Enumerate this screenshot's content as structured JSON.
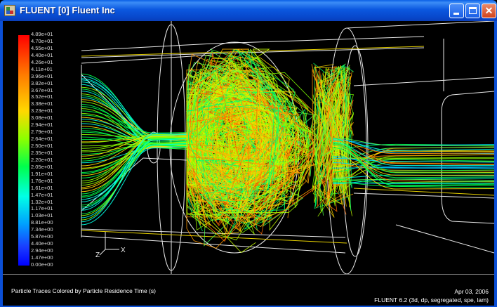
{
  "window": {
    "title": "FLUENT [0] Fluent Inc",
    "icon": "fluent-app-icon",
    "controls": {
      "minimize": "minimize-icon",
      "maximize": "maximize-icon",
      "close": "close-icon",
      "close_glyph": "✕"
    }
  },
  "colorbar": {
    "labels": [
      "4.89e+01",
      "4.70e+01",
      "4.55e+01",
      "4.40e+01",
      "4.26e+01",
      "4.11e+01",
      "3.96e+01",
      "3.82e+01",
      "3.67e+01",
      "3.52e+01",
      "3.38e+01",
      "3.23e+01",
      "3.08e+01",
      "2.94e+01",
      "2.79e+01",
      "2.64e+01",
      "2.50e+01",
      "2.35e+01",
      "2.20e+01",
      "2.05e+01",
      "1.91e+01",
      "1.76e+01",
      "1.61e+01",
      "1.47e+01",
      "1.32e+01",
      "1.17e+01",
      "1.03e+01",
      "8.81e+00",
      "7.34e+00",
      "5.87e+00",
      "4.40e+00",
      "2.94e+00",
      "1.47e+00",
      "0.00e+00"
    ],
    "max": 48.9,
    "min": 0.0,
    "colors": [
      "#ff0000",
      "#ff7a00",
      "#ffd800",
      "#8cff00",
      "#00ff4c",
      "#00ffe6",
      "#00a0ff",
      "#1a3cff",
      "#0000ff"
    ]
  },
  "axes_triad": {
    "z_label": "Z",
    "x_label": "X"
  },
  "info": {
    "title": "Particle Traces Colored by Particle Residence Time (s)",
    "date": "Apr 03, 2006",
    "version": "FLUENT 6.2 (3d, dp, segregated, spe, lam)"
  }
}
